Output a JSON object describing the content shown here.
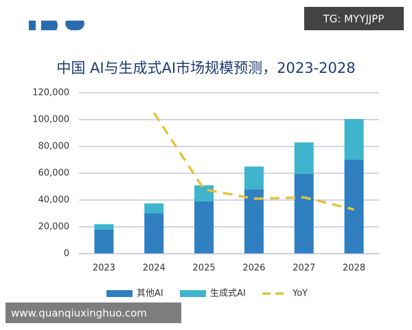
{
  "chart_data": {
    "type": "bar",
    "stacked": true,
    "title": "中国 AI与生成式AI市场规模预测，2023-2028",
    "categories": [
      "2023",
      "2024",
      "2025",
      "2026",
      "2027",
      "2028"
    ],
    "series": [
      {
        "name": "其他AI",
        "color": "#2f7fc1",
        "values": [
          18000,
          30000,
          39000,
          48000,
          59500,
          70000
        ]
      },
      {
        "name": "生成式AI",
        "color": "#3fb4cc",
        "values": [
          4000,
          7500,
          12000,
          17000,
          23500,
          30500
        ]
      },
      {
        "name": "YoY",
        "type": "line",
        "dashed": true,
        "color": "#e2c43c",
        "values": [
          null,
          105000,
          48000,
          41000,
          42000,
          33000
        ]
      }
    ],
    "ylim": [
      0,
      120000
    ],
    "yticks": [
      0,
      {
        "value": 20000,
        "label": "20,000"
      },
      {
        "value": 40000,
        "label": "40,000"
      },
      {
        "value": 60000,
        "label": "60,000"
      },
      {
        "value": 80000,
        "label": "80,000"
      },
      {
        "value": 100000,
        "label": "100,000"
      },
      {
        "value": 120000,
        "label": "120,000"
      }
    ],
    "grid": true,
    "legend": "bottom"
  },
  "watermarks": [
    "TG: MYYJJPP",
    "www.quanqiuxinghuo.com"
  ]
}
